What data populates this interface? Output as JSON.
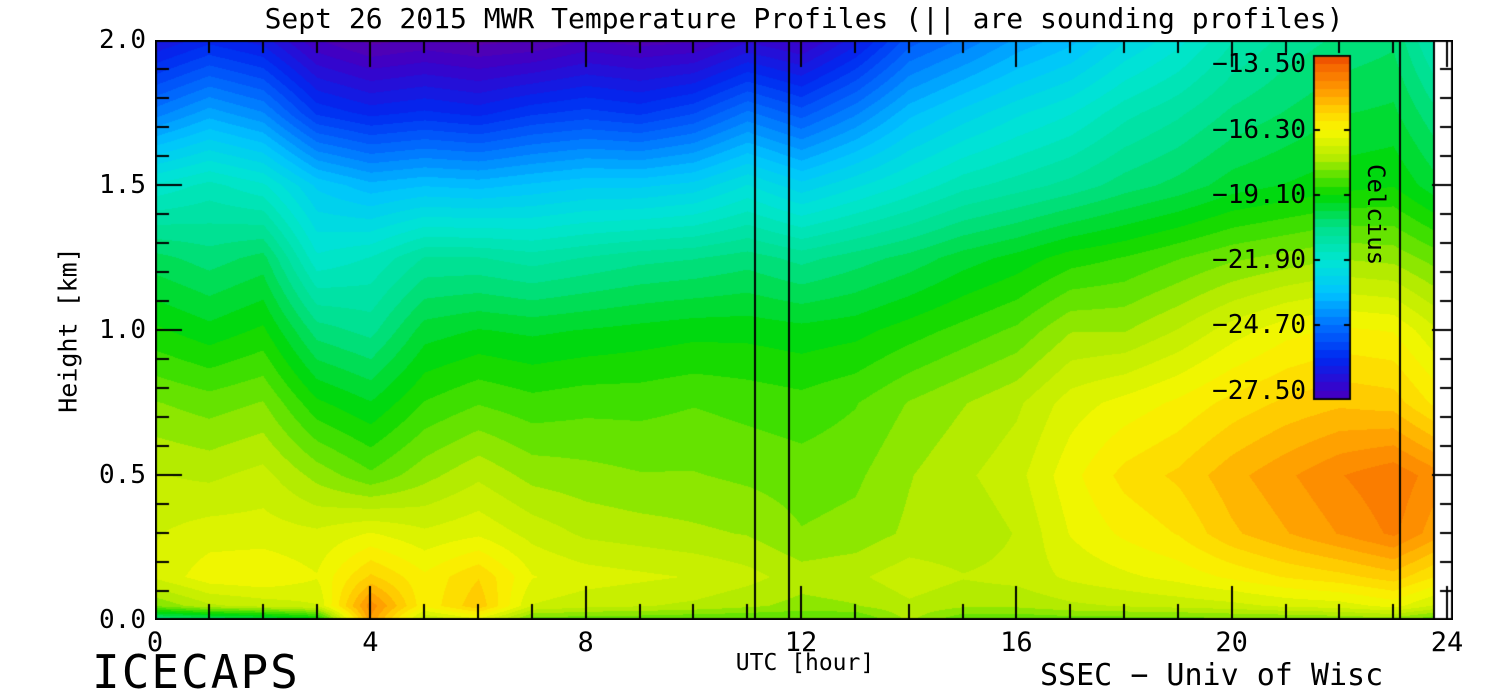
{
  "title": "Sept 26 2015 MWR Temperature Profiles (|| are sounding profiles)",
  "footer": {
    "left": "ICECAPS",
    "right": "SSEC − Univ of Wisc"
  },
  "axes": {
    "x": {
      "label": "UTC [hour]",
      "ticks": [
        "0",
        "4",
        "8",
        "12",
        "16",
        "20",
        "24"
      ],
      "tick_values": [
        0,
        4,
        8,
        12,
        16,
        20,
        24
      ],
      "range": [
        0,
        24
      ]
    },
    "y": {
      "label": "Height [km]",
      "ticks": [
        "0.0",
        "0.5",
        "1.0",
        "1.5",
        "2.0"
      ],
      "tick_values": [
        0,
        0.5,
        1.0,
        1.5,
        2.0
      ],
      "range": [
        0,
        2
      ]
    }
  },
  "colorbar": {
    "title": "Celcius",
    "labels": [
      "−13.50",
      "−16.30",
      "−19.10",
      "−21.90",
      "−24.70",
      "−27.50"
    ],
    "label_values": [
      -13.5,
      -16.3,
      -19.1,
      -21.9,
      -24.7,
      -27.5
    ],
    "tick_values": [
      -16.3,
      -19.1,
      -21.9,
      -24.7
    ],
    "top_value": -13.1,
    "bottom_value": -27.9
  },
  "chart_data": {
    "type": "heatmap",
    "title": "Sept 26 2015 MWR Temperature Profiles (|| are sounding profiles)",
    "xlabel": "UTC [hour]",
    "ylabel": "Height [km]",
    "xlim": [
      0,
      24.1
    ],
    "ylim": [
      0,
      2
    ],
    "units": "Celcius",
    "x_hours": [
      0,
      1,
      2,
      3,
      4,
      5,
      6,
      7,
      8,
      9,
      10,
      11,
      12,
      13,
      14,
      15,
      16,
      17,
      18,
      19,
      20,
      21,
      22,
      23,
      24
    ],
    "y_heights_km": [
      0.0,
      0.05,
      0.15,
      0.3,
      0.5,
      0.75,
      1.0,
      1.25,
      1.5,
      1.75,
      2.0
    ],
    "values_order": "rows = height levels bottom(0 km) to top(2 km); columns = hours 0..24; temperature in Celcius",
    "values_c": [
      [
        -20.8,
        -20.5,
        -20.2,
        -19.5,
        -14.6,
        -17.5,
        -16.8,
        -18.3,
        -18.4,
        -18.4,
        -18.5,
        -18.5,
        -18.5,
        -18.5,
        -17.6,
        -18.4,
        -18.4,
        -18.3,
        -18.3,
        -18.3,
        -18.2,
        -18.2,
        -18.1,
        -18.0,
        -18.6
      ],
      [
        -18.0,
        -17.4,
        -17.2,
        -17.0,
        -14.3,
        -16.2,
        -15.3,
        -17.0,
        -17.2,
        -17.3,
        -17.4,
        -17.6,
        -17.8,
        -17.7,
        -17.4,
        -17.6,
        -17.6,
        -17.4,
        -17.3,
        -17.2,
        -17.1,
        -16.9,
        -16.8,
        -16.5,
        -17.2
      ],
      [
        -16.9,
        -16.4,
        -16.3,
        -16.6,
        -15.5,
        -16.2,
        -15.6,
        -16.6,
        -16.8,
        -16.9,
        -17.0,
        -17.2,
        -17.5,
        -17.4,
        -17.1,
        -17.3,
        -17.2,
        -16.9,
        -16.7,
        -16.5,
        -16.2,
        -15.9,
        -15.7,
        -15.4,
        -16.1
      ],
      [
        -17.0,
        -16.8,
        -16.8,
        -16.9,
        -16.6,
        -16.9,
        -16.7,
        -17.1,
        -17.4,
        -17.5,
        -17.6,
        -17.7,
        -18.0,
        -17.9,
        -17.6,
        -17.6,
        -17.3,
        -16.6,
        -16.2,
        -15.9,
        -15.3,
        -14.9,
        -14.5,
        -14.1,
        -14.9
      ],
      [
        -17.3,
        -17.4,
        -17.2,
        -17.8,
        -18.3,
        -17.8,
        -17.4,
        -17.8,
        -17.9,
        -18.0,
        -18.0,
        -18.1,
        -18.2,
        -18.1,
        -17.7,
        -17.4,
        -17.1,
        -16.4,
        -15.8,
        -15.5,
        -15.0,
        -14.6,
        -14.2,
        -13.9,
        -14.5
      ],
      [
        -18.0,
        -18.2,
        -18.0,
        -19.0,
        -19.4,
        -18.7,
        -18.4,
        -18.6,
        -18.5,
        -18.5,
        -18.4,
        -18.5,
        -18.6,
        -18.4,
        -18.0,
        -17.7,
        -17.4,
        -16.8,
        -16.5,
        -16.2,
        -15.8,
        -15.5,
        -15.3,
        -15.4,
        -16.2
      ],
      [
        -19.0,
        -19.3,
        -19.0,
        -20.3,
        -20.6,
        -19.6,
        -19.4,
        -19.5,
        -19.4,
        -19.3,
        -19.2,
        -19.2,
        -19.3,
        -19.2,
        -18.9,
        -18.6,
        -18.3,
        -17.7,
        -17.7,
        -17.3,
        -16.8,
        -16.4,
        -16.2,
        -16.3,
        -17.1
      ],
      [
        -20.0,
        -20.3,
        -20.0,
        -21.8,
        -21.5,
        -20.8,
        -20.8,
        -21.0,
        -20.8,
        -20.6,
        -20.5,
        -20.3,
        -20.6,
        -20.3,
        -20.0,
        -19.6,
        -19.3,
        -18.9,
        -18.7,
        -18.4,
        -18.1,
        -17.9,
        -17.7,
        -17.8,
        -18.3
      ],
      [
        -21.8,
        -21.4,
        -21.8,
        -23.0,
        -23.5,
        -23.3,
        -23.4,
        -23.2,
        -23.0,
        -23.0,
        -22.8,
        -22.2,
        -22.8,
        -22.3,
        -21.8,
        -21.3,
        -21.0,
        -20.7,
        -20.3,
        -20.0,
        -19.6,
        -19.4,
        -19.2,
        -19.1,
        -19.8
      ],
      [
        -24.5,
        -23.8,
        -24.3,
        -25.8,
        -26.2,
        -26.0,
        -26.2,
        -25.8,
        -25.6,
        -25.8,
        -25.4,
        -24.6,
        -25.2,
        -24.4,
        -23.4,
        -22.8,
        -22.3,
        -21.9,
        -21.3,
        -20.9,
        -20.4,
        -20.1,
        -19.8,
        -19.7,
        -20.6
      ],
      [
        -26.8,
        -26.2,
        -26.6,
        -27.8,
        -28.3,
        -28.1,
        -28.3,
        -28.2,
        -27.8,
        -28.0,
        -27.9,
        -27.2,
        -27.6,
        -26.6,
        -25.2,
        -24.6,
        -23.9,
        -23.4,
        -22.6,
        -22.0,
        -21.2,
        -20.7,
        -20.4,
        -20.2,
        -21.6
      ]
    ],
    "band_step_c": 0.35,
    "data_end_hour": 23.75,
    "sounding_profile_hours": [
      11.15,
      11.78,
      23.12,
      23.75
    ],
    "colormap_stops": [
      [
        -28.6,
        "#6400a0"
      ],
      [
        -27.5,
        "#3c00c8"
      ],
      [
        -26.1,
        "#0028f0"
      ],
      [
        -24.7,
        "#0070ff"
      ],
      [
        -23.3,
        "#00c3ff"
      ],
      [
        -21.9,
        "#00e6d2"
      ],
      [
        -20.5,
        "#00e08c"
      ],
      [
        -19.1,
        "#00d800"
      ],
      [
        -17.5,
        "#b4eb00"
      ],
      [
        -16.3,
        "#f8f800"
      ],
      [
        -15.5,
        "#ffd200"
      ],
      [
        -14.6,
        "#ff9b00"
      ],
      [
        -13.5,
        "#f56400"
      ],
      [
        -13.0,
        "#e63c00"
      ]
    ],
    "legend_position": "inside right",
    "grid": false
  }
}
